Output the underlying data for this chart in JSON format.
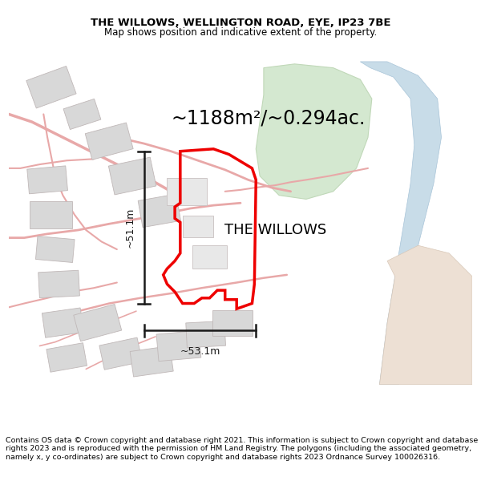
{
  "title_line1": "THE WILLOWS, WELLINGTON ROAD, EYE, IP23 7BE",
  "title_line2": "Map shows position and indicative extent of the property.",
  "property_label": "THE WILLOWS",
  "area_label": "~1188m²/~0.294ac.",
  "dim_horizontal": "~53.1m",
  "dim_vertical": "~51.1m",
  "copyright_text": "Contains OS data © Crown copyright and database right 2021. This information is subject to Crown copyright and database rights 2023 and is reproduced with the permission of HM Land Registry. The polygons (including the associated geometry, namely x, y co-ordinates) are subject to Crown copyright and database rights 2023 Ordnance Survey 100026316.",
  "bg_color": "#ffffff",
  "road_color": "#f0c8c8",
  "road_outline_color": "#e8a8a8",
  "building_color": "#d8d8d8",
  "building_edge": "#c0b8b8",
  "property_color": "#ee0000",
  "green_color": "#d4e8d0",
  "green_edge": "#c0d8b8",
  "water_color": "#c8dce8",
  "tan_color": "#ede0d4",
  "tan_edge": "#d8c8b8",
  "title_fontsize": 9.5,
  "subtitle_fontsize": 8.5,
  "area_fontsize": 17,
  "label_fontsize": 13,
  "copyright_fontsize": 6.8
}
